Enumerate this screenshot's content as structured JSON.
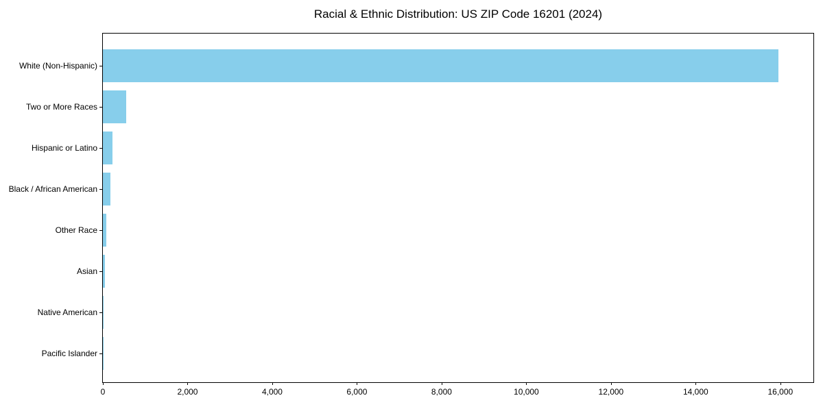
{
  "title": "Racial & Ethnic Distribution: US ZIP Code 16201 (2024)",
  "colors": {
    "bar": "#87CEEB",
    "axis": "#000000",
    "background": "#FFFFFF",
    "text": "#000000"
  },
  "chart_data": {
    "type": "bar",
    "orientation": "horizontal",
    "title": "Racial & Ethnic Distribution: US ZIP Code 16201 (2024)",
    "xlabel": "",
    "ylabel": "",
    "grid": false,
    "legend": null,
    "bar_color": "#87CEEB",
    "categories": [
      "White (Non-Hispanic)",
      "Two or More Races",
      "Hispanic or Latino",
      "Black / African American",
      "Other Race",
      "Asian",
      "Native American",
      "Pacific Islander"
    ],
    "values": [
      15950,
      555,
      220,
      175,
      80,
      45,
      10,
      4
    ],
    "xlim": [
      0,
      16780
    ],
    "x_ticks": [
      {
        "value": 0,
        "label": "0"
      },
      {
        "value": 2000,
        "label": "2,000"
      },
      {
        "value": 4000,
        "label": "4,000"
      },
      {
        "value": 6000,
        "label": "6,000"
      },
      {
        "value": 8000,
        "label": "8,000"
      },
      {
        "value": 10000,
        "label": "10,000"
      },
      {
        "value": 12000,
        "label": "12,000"
      },
      {
        "value": 14000,
        "label": "14,000"
      },
      {
        "value": 16000,
        "label": "16,000"
      }
    ]
  }
}
